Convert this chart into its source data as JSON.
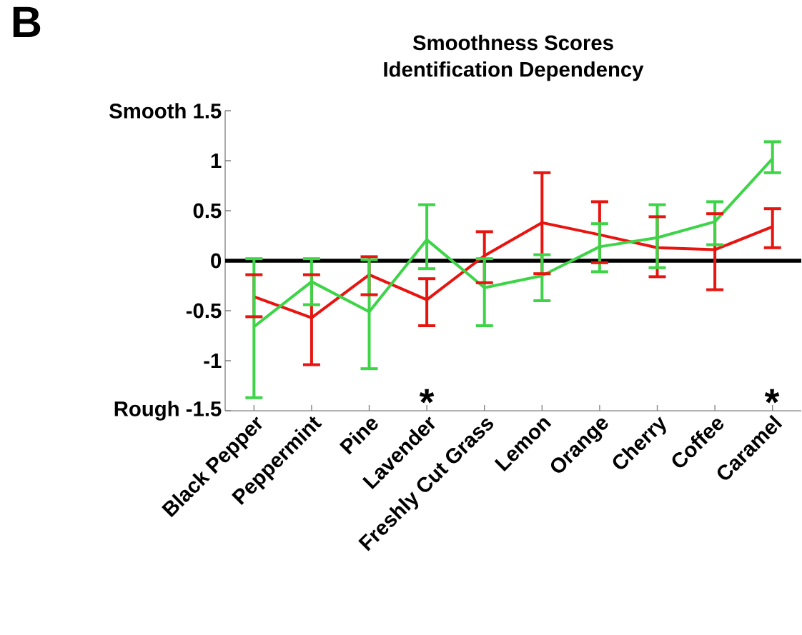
{
  "chart_data": {
    "type": "line",
    "title": "Smoothness Scores",
    "subtitle": "Identification Dependency",
    "categories": [
      "Black Pepper",
      "Peppermint",
      "Pine",
      "Lavender",
      "Freshly Cut Grass",
      "Lemon",
      "Orange",
      "Cherry",
      "Coffee",
      "Caramel"
    ],
    "series": [
      {
        "color": "#e8140f",
        "values": [
          -0.36,
          -0.57,
          -0.14,
          -0.39,
          0.05,
          0.38,
          0.26,
          0.13,
          0.11,
          0.34
        ],
        "errors": [
          [
            -0.56,
            -0.14
          ],
          [
            -1.04,
            -0.14
          ],
          [
            -0.34,
            0.04
          ],
          [
            -0.65,
            -0.18
          ],
          [
            -0.22,
            0.29
          ],
          [
            -0.13,
            0.88
          ],
          [
            -0.02,
            0.59
          ],
          [
            -0.16,
            0.44
          ],
          [
            -0.29,
            0.47
          ],
          [
            0.13,
            0.52
          ]
        ]
      },
      {
        "color": "#3ed448",
        "values": [
          -0.66,
          -0.21,
          -0.51,
          0.21,
          -0.27,
          -0.15,
          0.14,
          0.23,
          0.39,
          1.02
        ],
        "errors": [
          [
            -1.37,
            0.02
          ],
          [
            -0.44,
            0.02
          ],
          [
            -1.08,
            0.01
          ],
          [
            -0.08,
            0.56
          ],
          [
            -0.65,
            0.02
          ],
          [
            -0.4,
            0.06
          ],
          [
            -0.11,
            0.37
          ],
          [
            -0.07,
            0.56
          ],
          [
            0.16,
            0.59
          ],
          [
            0.88,
            1.19
          ]
        ]
      }
    ],
    "ylim": [
      -1.5,
      1.5
    ],
    "yticks": [
      {
        "value": 1.5,
        "label": "Smooth 1.5"
      },
      1,
      0.5,
      0,
      -0.5,
      -1,
      {
        "value": -1.5,
        "label": "Rough -1.5"
      }
    ],
    "ref_lines": [
      {
        "axis": "y",
        "value": 0,
        "color": "#000000"
      }
    ],
    "annotations": [
      "B",
      "*",
      "*"
    ],
    "grid": false
  }
}
